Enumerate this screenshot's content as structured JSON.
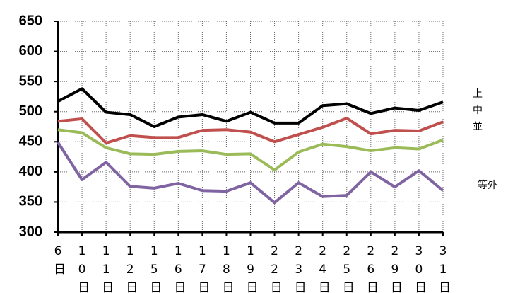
{
  "chart_data": {
    "type": "line",
    "categories": [
      "6日",
      "10日",
      "11日",
      "12日",
      "15日",
      "16日",
      "17日",
      "18日",
      "19日",
      "22日",
      "23日",
      "24日",
      "25日",
      "26日",
      "29日",
      "30日",
      "31日"
    ],
    "series": [
      {
        "name": "上",
        "color": "#000000",
        "values": [
          517,
          538,
          499,
          495,
          475,
          491,
          495,
          484,
          499,
          481,
          481,
          510,
          513,
          497,
          506,
          502,
          516
        ]
      },
      {
        "name": "中",
        "color": "#c0504d",
        "values": [
          484,
          488,
          448,
          460,
          457,
          457,
          469,
          470,
          466,
          450,
          462,
          474,
          489,
          463,
          469,
          468,
          483
        ]
      },
      {
        "name": "並",
        "color": "#9bbb59",
        "values": [
          470,
          465,
          440,
          430,
          429,
          434,
          435,
          429,
          430,
          403,
          433,
          446,
          442,
          435,
          440,
          438,
          453
        ]
      },
      {
        "name": "等外",
        "color": "#8064a2",
        "values": [
          449,
          387,
          416,
          376,
          373,
          381,
          369,
          368,
          382,
          349,
          382,
          359,
          361,
          400,
          375,
          402,
          369
        ]
      }
    ],
    "ylim": [
      300,
      650
    ],
    "yticks": [
      300,
      350,
      400,
      450,
      500,
      550,
      600,
      650
    ],
    "grid": true
  }
}
